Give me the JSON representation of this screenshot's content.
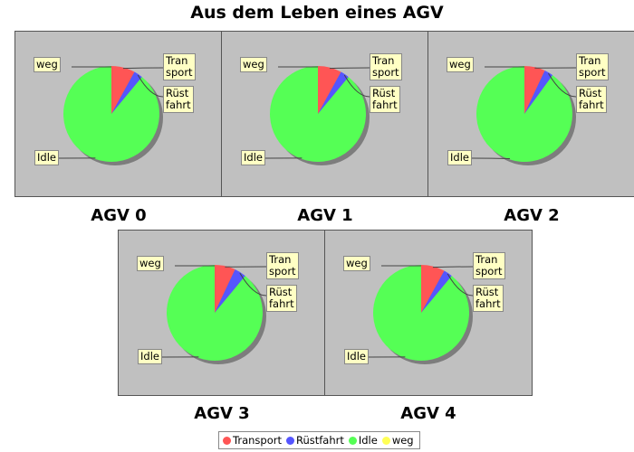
{
  "title": "Aus dem Leben eines AGV",
  "colors": {
    "transport": "#ff5555",
    "ruestfahrt": "#5555ff",
    "idle": "#55ff55",
    "weg": "#ffff55",
    "panel_bg": "#c0c0c0"
  },
  "legend": [
    {
      "label": "Transport",
      "color": "#ff5555"
    },
    {
      "label": "Rüstfahrt",
      "color": "#5555ff"
    },
    {
      "label": "Idle",
      "color": "#55ff55"
    },
    {
      "label": "weg",
      "color": "#ffff55"
    }
  ],
  "chart_data": [
    {
      "type": "pie",
      "title": "AGV 0",
      "slices": [
        {
          "name": "Transport",
          "value": 8
        },
        {
          "name": "Rüstfahrt",
          "value": 3
        },
        {
          "name": "Idle",
          "value": 89
        },
        {
          "name": "weg",
          "value": 0
        }
      ],
      "labels": {
        "weg": "weg",
        "transport": "Tran\nsport",
        "ruestfahrt": "Rüst\nfahrt",
        "idle": "Idle"
      }
    },
    {
      "type": "pie",
      "title": "AGV 1",
      "slices": [
        {
          "name": "Transport",
          "value": 8
        },
        {
          "name": "Rüstfahrt",
          "value": 3
        },
        {
          "name": "Idle",
          "value": 89
        },
        {
          "name": "weg",
          "value": 0
        }
      ],
      "labels": {
        "weg": "weg",
        "transport": "Tran\nsport",
        "ruestfahrt": "Rüst\nfahrt",
        "idle": "Idle"
      }
    },
    {
      "type": "pie",
      "title": "AGV 2",
      "slices": [
        {
          "name": "Transport",
          "value": 7
        },
        {
          "name": "Rüstfahrt",
          "value": 3
        },
        {
          "name": "Idle",
          "value": 90
        },
        {
          "name": "weg",
          "value": 0
        }
      ],
      "labels": {
        "weg": "weg",
        "transport": "Tran\nsport",
        "ruestfahrt": "Rüst\nfahrt",
        "idle": "Idle"
      }
    },
    {
      "type": "pie",
      "title": "AGV 3",
      "slices": [
        {
          "name": "Transport",
          "value": 7
        },
        {
          "name": "Rüstfahrt",
          "value": 4
        },
        {
          "name": "Idle",
          "value": 89
        },
        {
          "name": "weg",
          "value": 0
        }
      ],
      "labels": {
        "weg": "weg",
        "transport": "Tran\nsport",
        "ruestfahrt": "Rüst\nfahrt",
        "idle": "Idle"
      }
    },
    {
      "type": "pie",
      "title": "AGV 4",
      "slices": [
        {
          "name": "Transport",
          "value": 8
        },
        {
          "name": "Rüstfahrt",
          "value": 3
        },
        {
          "name": "Idle",
          "value": 89
        },
        {
          "name": "weg",
          "value": 0
        }
      ],
      "labels": {
        "weg": "weg",
        "transport": "Tran\nsport",
        "ruestfahrt": "Rüst\nfahrt",
        "idle": "Idle"
      }
    }
  ]
}
